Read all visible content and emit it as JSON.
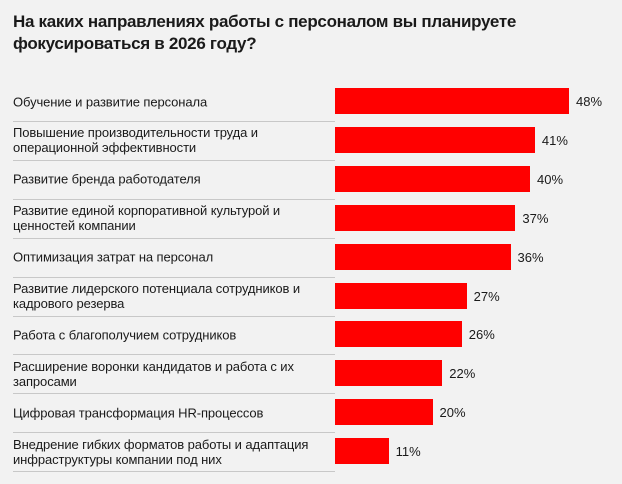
{
  "chart_data": {
    "type": "bar",
    "orientation": "horizontal",
    "title": "На каких направлениях работы с персоналом вы планируете фокусироваться в 2026 году?",
    "categories": [
      "Обучение и развитие персонала",
      "Повышение производительности труда и операционной эффективности",
      "Развитие бренда работодателя",
      "Развитие единой корпоративной культурой и ценностей компании",
      "Оптимизация затрат на персонал",
      "Развитие лидерского потенциала сотрудников и кадрового резерва",
      "Работа с благополучием сотрудников",
      "Расширение воронки кандидатов и работа с их запросами",
      "Цифровая трансформация HR-процессов",
      "Внедрение гибких форматов работы и адаптация инфраструктуры компании под них"
    ],
    "values": [
      48,
      41,
      40,
      37,
      36,
      27,
      26,
      22,
      20,
      11
    ],
    "value_labels": [
      "48%",
      "41%",
      "40%",
      "37%",
      "36%",
      "27%",
      "26%",
      "22%",
      "20%",
      "11%"
    ],
    "unit": "%",
    "bar_color": "#ff0000",
    "background": "#f2f2f2",
    "grid": false,
    "legend": "none"
  }
}
